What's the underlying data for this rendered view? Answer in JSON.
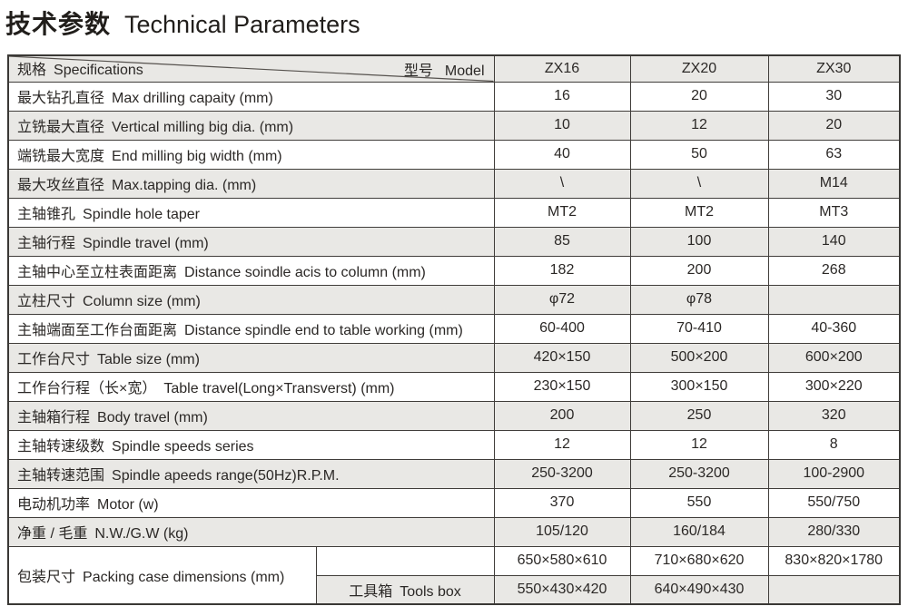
{
  "title": {
    "zh": "技术参数",
    "en": "Technical Parameters"
  },
  "table": {
    "corner": {
      "spec_zh": "规格",
      "spec_en": "Specifications",
      "model_zh": "型号",
      "model_en": "Model"
    },
    "models": [
      "ZX16",
      "ZX20",
      "ZX30"
    ],
    "rows": [
      {
        "zh": "最大钻孔直径",
        "en": "Max drilling capaity (mm)",
        "values": [
          "16",
          "20",
          "30"
        ]
      },
      {
        "zh": "立铣最大直径",
        "en": "Vertical milling big dia. (mm)",
        "values": [
          "10",
          "12",
          "20"
        ]
      },
      {
        "zh": "端铣最大宽度",
        "en": "End milling big width (mm)",
        "values": [
          "40",
          "50",
          "63"
        ]
      },
      {
        "zh": "最大攻丝直径",
        "en": "Max.tapping dia. (mm)",
        "values": [
          "\\",
          "\\",
          "M14"
        ]
      },
      {
        "zh": "主轴锥孔",
        "en": "Spindle hole taper",
        "values": [
          "MT2",
          "MT2",
          "MT3"
        ]
      },
      {
        "zh": "主轴行程",
        "en": "Spindle travel (mm)",
        "values": [
          "85",
          "100",
          "140"
        ]
      },
      {
        "zh": "主轴中心至立柱表面距离",
        "en": "Distance soindle acis to column (mm)",
        "values": [
          "182",
          "200",
          "268"
        ]
      },
      {
        "zh": "立柱尺寸",
        "en": "Column size (mm)",
        "values": [
          "φ72",
          "φ78",
          ""
        ]
      },
      {
        "zh": "主轴端面至工作台面距离",
        "en": "Distance spindle end to table working (mm)",
        "values": [
          "60-400",
          "70-410",
          "40-360"
        ]
      },
      {
        "zh": "工作台尺寸",
        "en": "Table size (mm)",
        "values": [
          "420×150",
          "500×200",
          "600×200"
        ]
      },
      {
        "zh": "工作台行程（长×宽）",
        "en": "Table travel(Long×Transverst) (mm)",
        "values": [
          "230×150",
          "300×150",
          "300×220"
        ]
      },
      {
        "zh": "主轴箱行程",
        "en": "Body travel (mm)",
        "values": [
          "200",
          "250",
          "320"
        ]
      },
      {
        "zh": "主轴转速级数",
        "en": "Spindle speeds series",
        "values": [
          "12",
          "12",
          "8"
        ]
      },
      {
        "zh": "主轴转速范围",
        "en": "Spindle apeeds range(50Hz)R.P.M.",
        "values": [
          "250-3200",
          "250-3200",
          "100-2900"
        ]
      },
      {
        "zh": "电动机功率",
        "en": "Motor (w)",
        "values": [
          "370",
          "550",
          "550/750"
        ]
      },
      {
        "zh": "净重 / 毛重",
        "en": "N.W./G.W (kg)",
        "values": [
          "105/120",
          "160/184",
          "280/330"
        ]
      }
    ],
    "packing": {
      "zh": "包装尺寸",
      "en": "Packing case dimensions (mm)",
      "toolbox_zh": "工具箱",
      "toolbox_en": "Tools box",
      "machine_values": [
        "650×580×610",
        "710×680×620",
        "830×820×1780"
      ],
      "toolbox_values": [
        "550×430×420",
        "640×490×430",
        ""
      ]
    }
  },
  "colors": {
    "row_alt_bg": "#e9e8e5",
    "grid_border": "#403d3a",
    "outer_border": "#3a3835",
    "text": "#2b2826"
  }
}
